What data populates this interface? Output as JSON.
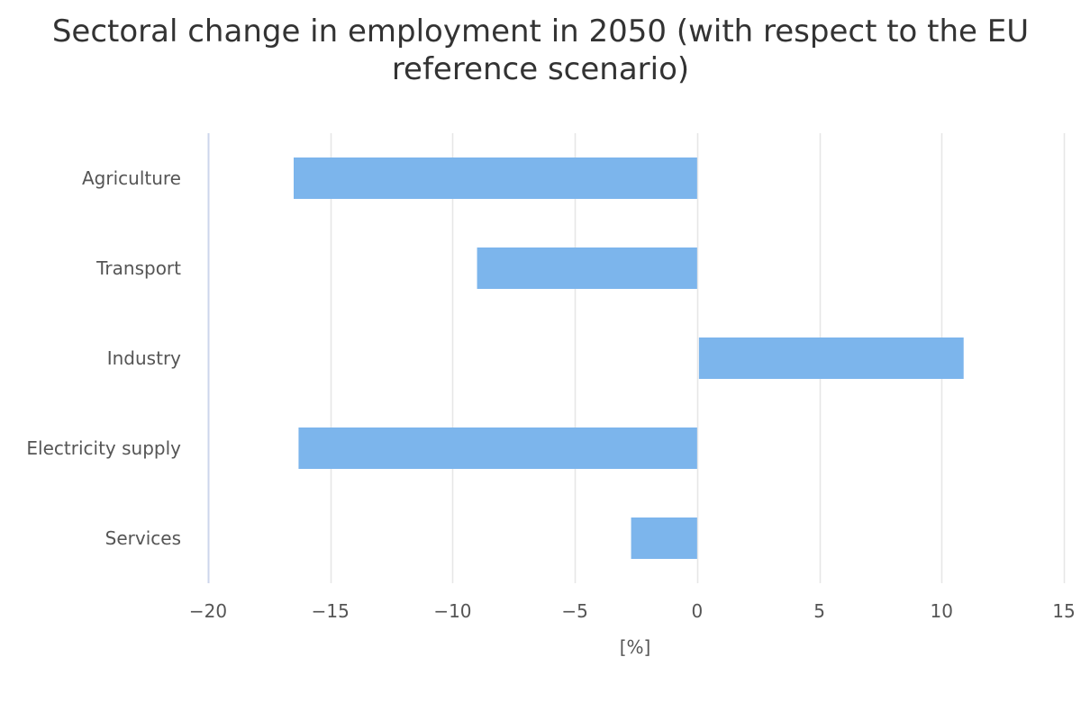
{
  "chart_data": {
    "type": "bar",
    "orientation": "horizontal",
    "title": "Sectoral change in employment in 2050 (with respect to the EU reference scenario)",
    "xlabel": "[%]",
    "ylabel": "",
    "categories": [
      "Agriculture",
      "Transport",
      "Industry",
      "Electricity supply",
      "Services"
    ],
    "values": [
      -16.5,
      -9.0,
      10.9,
      -16.3,
      -2.7
    ],
    "xlim": [
      -20,
      15
    ],
    "xticks": [
      -20,
      -15,
      -10,
      -5,
      0,
      5,
      10,
      15
    ],
    "xtick_labels": [
      "−20",
      "−15",
      "−10",
      "−5",
      "0",
      "5",
      "10",
      "15"
    ],
    "grid": "vertical",
    "legend": "none",
    "bar_color": "#7cb5ec",
    "grid_color": "#e6e6e6",
    "axis_color": "#ccd6eb"
  }
}
